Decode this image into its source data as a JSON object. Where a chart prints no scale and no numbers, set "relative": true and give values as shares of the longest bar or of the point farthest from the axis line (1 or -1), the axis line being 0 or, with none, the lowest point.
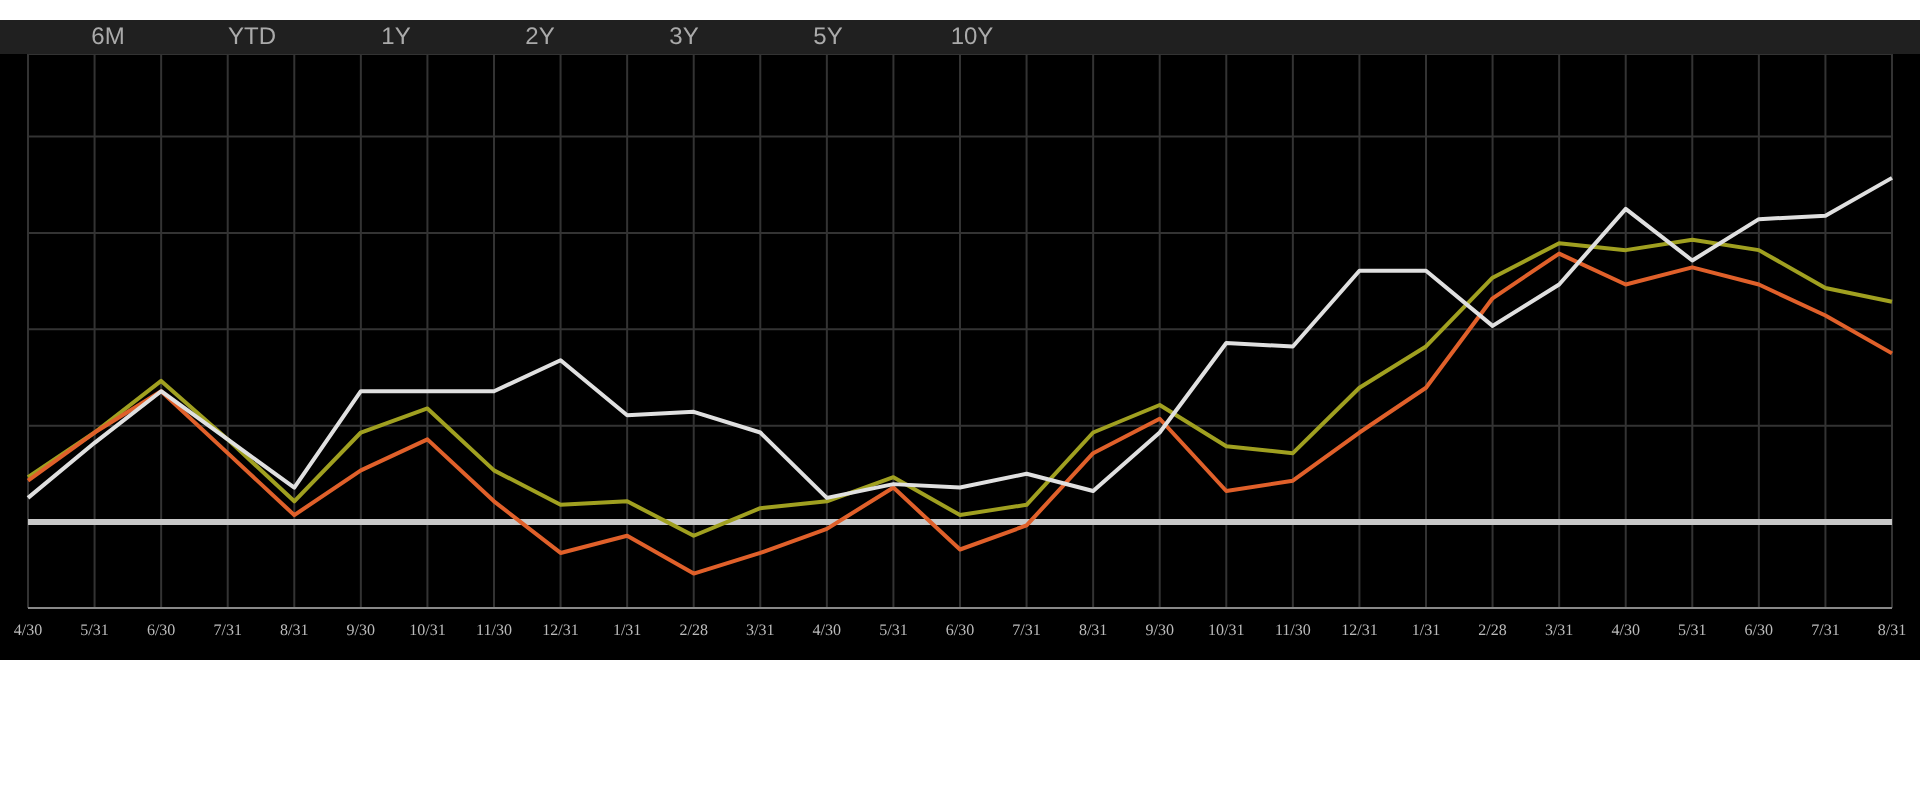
{
  "chart_data": {
    "type": "line",
    "relative": true,
    "grid": true,
    "marker": "none",
    "line_style": "solid",
    "annotations": [
      "6M",
      "YTD",
      "1Y",
      "2Y",
      "3Y",
      "5Y",
      "10Y"
    ],
    "categories": [
      "4/30",
      "5/31",
      "6/30",
      "7/31",
      "8/31",
      "9/30",
      "10/31",
      "11/30",
      "12/31",
      "1/31",
      "2/28",
      "3/31",
      "4/30",
      "5/31",
      "6/30",
      "7/31",
      "8/31",
      "9/30",
      "10/31",
      "11/30",
      "12/31",
      "1/31",
      "2/28",
      "3/31",
      "4/30",
      "5/31",
      "6/30",
      "7/31",
      "8/31"
    ],
    "ref_lines": [
      {
        "axis": "y",
        "value": 0,
        "color": "#c8c8c8"
      }
    ],
    "series": [
      {
        "color": "#a0a020",
        "values": [
          0.13,
          0.26,
          0.41,
          0.24,
          0.06,
          0.26,
          0.33,
          0.15,
          0.05,
          0.06,
          -0.04,
          0.04,
          0.06,
          0.13,
          0.02,
          0.05,
          0.26,
          0.34,
          0.22,
          0.2,
          0.39,
          0.51,
          0.71,
          0.81,
          0.79,
          0.82,
          0.79,
          0.68,
          0.64
        ]
      },
      {
        "color": "#e0602a",
        "values": [
          0.12,
          0.26,
          0.38,
          0.2,
          0.02,
          0.15,
          0.24,
          0.06,
          -0.09,
          -0.04,
          -0.15,
          -0.09,
          -0.02,
          0.1,
          -0.08,
          -0.01,
          0.2,
          0.3,
          0.09,
          0.12,
          0.26,
          0.39,
          0.65,
          0.78,
          0.69,
          0.74,
          0.69,
          0.6,
          0.49
        ]
      },
      {
        "color": "#e0e0e0",
        "values": [
          0.07,
          0.23,
          0.38,
          0.24,
          0.1,
          0.38,
          0.38,
          0.38,
          0.47,
          0.31,
          0.32,
          0.26,
          0.07,
          0.11,
          0.1,
          0.14,
          0.09,
          0.26,
          0.52,
          0.51,
          0.73,
          0.73,
          0.57,
          0.69,
          0.91,
          0.76,
          0.88,
          0.89,
          1
        ]
      }
    ]
  }
}
